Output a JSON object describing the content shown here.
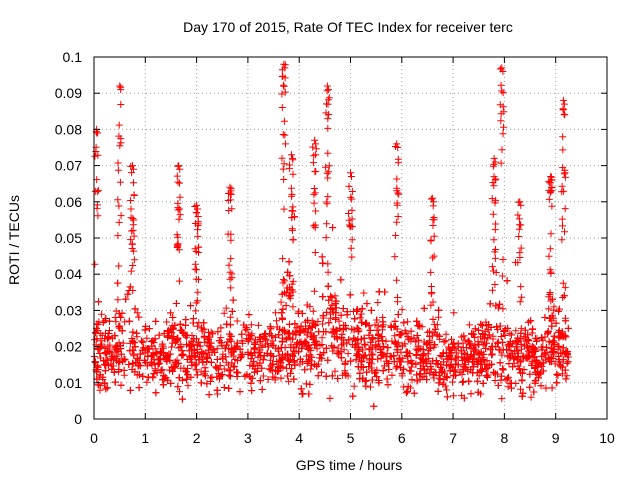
{
  "chart_data": {
    "type": "scatter",
    "title": "Day 170 of 2015, Rate Of TEC Index for receiver terc",
    "xlabel": "GPS time / hours",
    "ylabel": "ROTI / TECUs",
    "xlim": [
      0,
      10
    ],
    "ylim": [
      0,
      0.1
    ],
    "x_ticks": [
      "0",
      "1",
      "2",
      "3",
      "4",
      "5",
      "6",
      "7",
      "8",
      "9",
      "10"
    ],
    "y_ticks": [
      "0",
      "0.01",
      "0.02",
      "0.03",
      "0.04",
      "0.05",
      "0.06",
      "0.07",
      "0.08",
      "0.09",
      "0.1"
    ],
    "grid": true,
    "marker": "+",
    "color": "#ff0000",
    "data_x_range": [
      0,
      9.25
    ],
    "series": [
      {
        "name": "ROTI",
        "density_note": "thousands of samples; baseline 0.005-0.03 with spikes",
        "peaks": [
          {
            "x": 0.05,
            "y": 0.08
          },
          {
            "x": 0.5,
            "y": 0.092
          },
          {
            "x": 0.75,
            "y": 0.07
          },
          {
            "x": 1.65,
            "y": 0.07
          },
          {
            "x": 2.0,
            "y": 0.059
          },
          {
            "x": 2.65,
            "y": 0.064
          },
          {
            "x": 3.7,
            "y": 0.098
          },
          {
            "x": 3.85,
            "y": 0.073
          },
          {
            "x": 4.3,
            "y": 0.077
          },
          {
            "x": 4.55,
            "y": 0.092
          },
          {
            "x": 5.0,
            "y": 0.068
          },
          {
            "x": 5.9,
            "y": 0.076
          },
          {
            "x": 6.6,
            "y": 0.061
          },
          {
            "x": 7.8,
            "y": 0.072
          },
          {
            "x": 7.95,
            "y": 0.097
          },
          {
            "x": 8.3,
            "y": 0.06
          },
          {
            "x": 8.9,
            "y": 0.067
          },
          {
            "x": 9.15,
            "y": 0.088
          }
        ]
      }
    ]
  }
}
